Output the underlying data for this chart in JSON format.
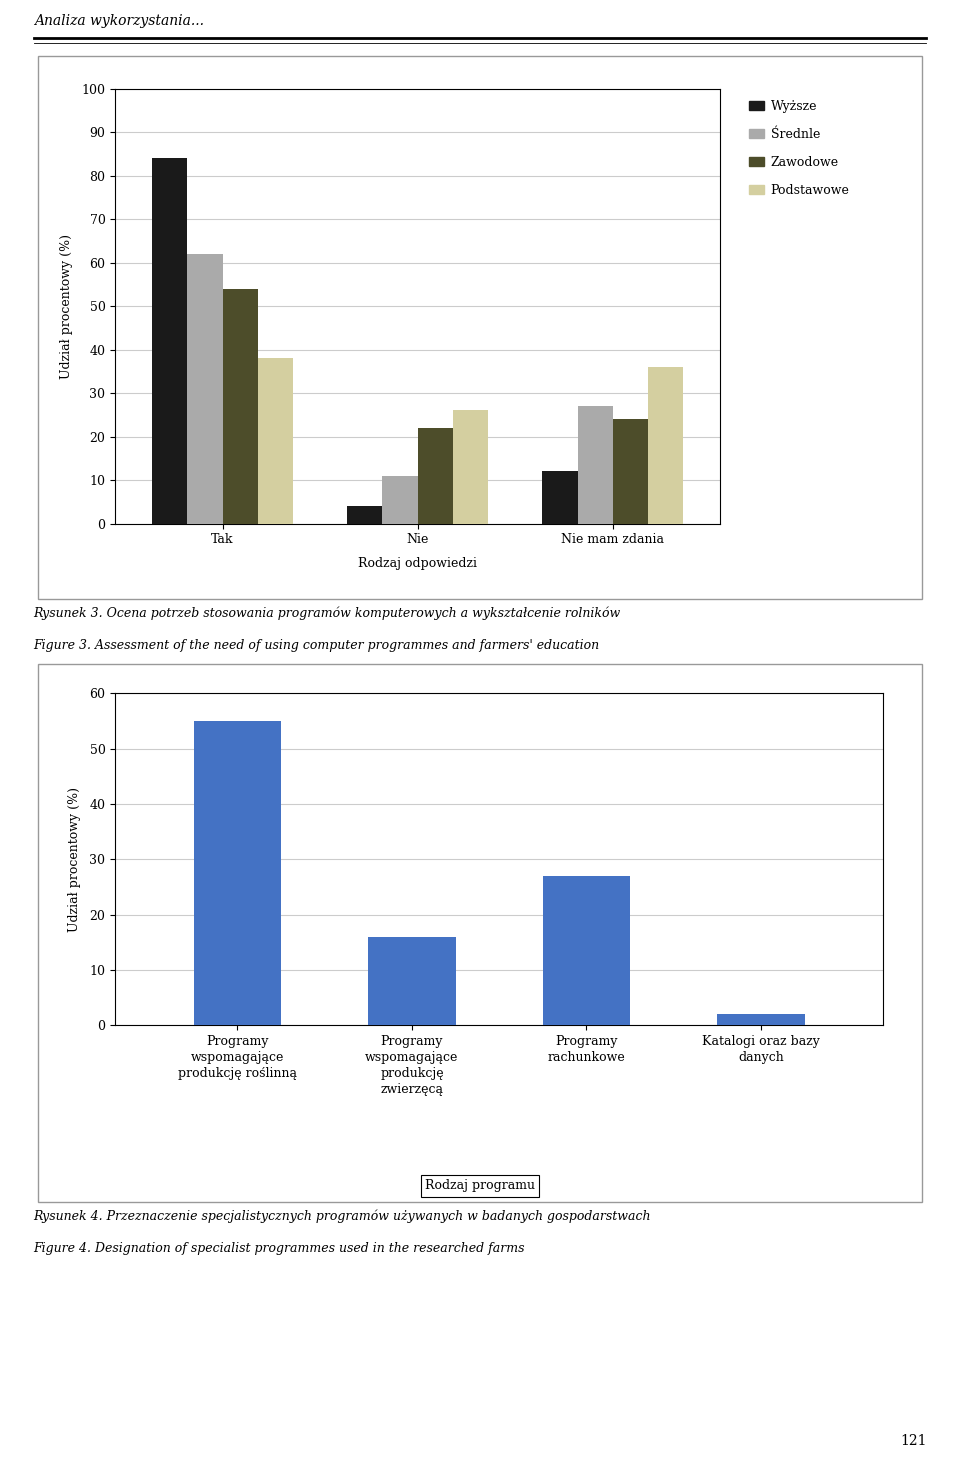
{
  "page_header": "Analiza wykorzystania...",
  "chart1": {
    "categories": [
      "Tak",
      "Nie",
      "Nie mam zdania"
    ],
    "xlabel": "Rodzaj odpowiedzi",
    "ylabel": "Udział procentowy (%)",
    "ylim": [
      0,
      100
    ],
    "yticks": [
      0,
      10,
      20,
      30,
      40,
      50,
      60,
      70,
      80,
      90,
      100
    ],
    "series": {
      "Wyższe": [
        84,
        4,
        12
      ],
      "Średnle": [
        62,
        11,
        27
      ],
      "Zawodowe": [
        54,
        22,
        24
      ],
      "Podstawowe": [
        38,
        26,
        36
      ]
    },
    "colors": {
      "Wyższe": "#1a1a1a",
      "Średnle": "#aaaaaa",
      "Zawodowe": "#4d4d2a",
      "Podstawowe": "#d4cfa0"
    },
    "legend_labels": [
      "Wyższe",
      "Średnle",
      "Zawodowe",
      "Podstawowe"
    ]
  },
  "caption1_line1": "Rysunek 3. Ocena potrzeb stosowania programów komputerowych a wykształcenie rolników",
  "caption1_line2": "Figure 3. Assessment of the need of using computer programmes and farmers' education",
  "chart2": {
    "categories": [
      "Programy\nwspomagające\nprodukcję roślinną",
      "Programy\nwspomagające\nprodukcję\nzwierzęcą",
      "Programy\nrachunkowe",
      "Katalogi oraz bazy\ndanych"
    ],
    "xlabel": "Rodzaj programu",
    "ylabel": "Udział procentowy (%)",
    "ylim": [
      0,
      60
    ],
    "yticks": [
      0,
      10,
      20,
      30,
      40,
      50,
      60
    ],
    "values": [
      55,
      16,
      27,
      2
    ],
    "bar_color": "#4472c4"
  },
  "caption2_line1": "Rysunek 4. Przeznaczenie specjalistycznych programów używanych w badanych gospodarstwach",
  "caption2_line2": "Figure 4. Designation of specialist programmes used in the researched farms",
  "page_number": "121",
  "background_color": "#ffffff",
  "chart_bg_color": "#ffffff",
  "grid_color": "#cccccc",
  "outer_box_color": "#999999"
}
